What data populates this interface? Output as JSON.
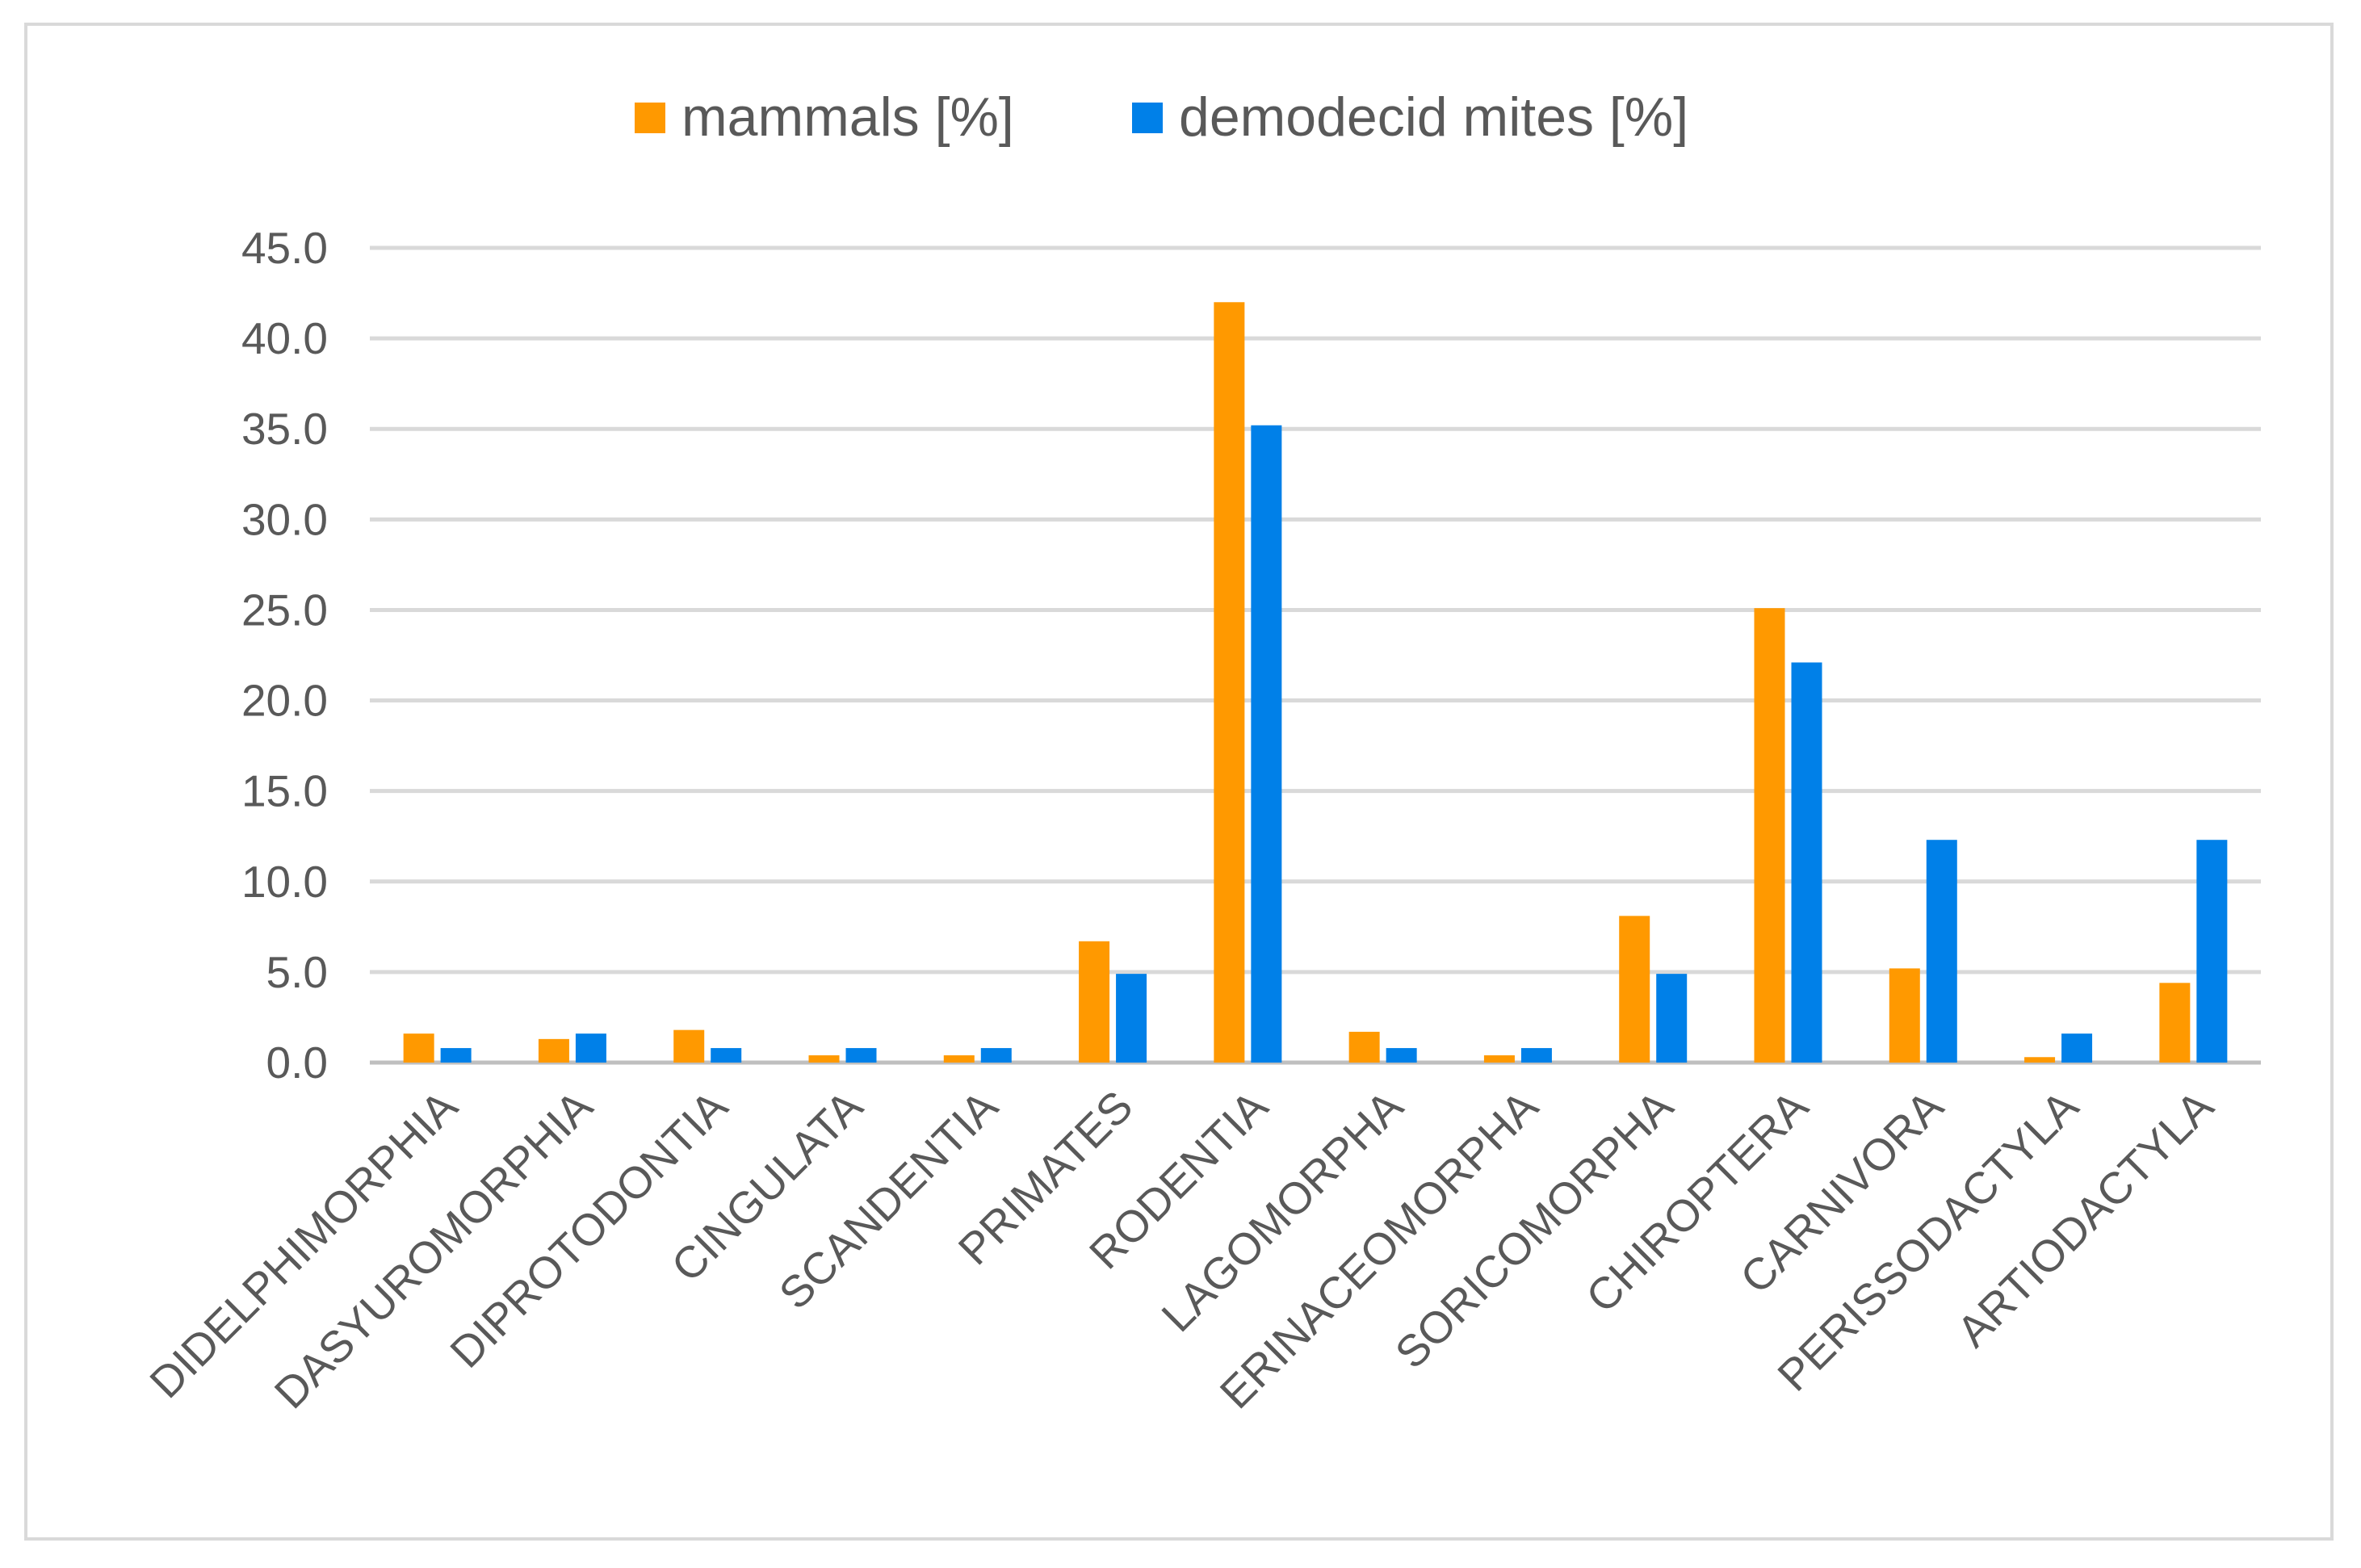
{
  "chart_data": {
    "type": "bar",
    "categories": [
      "DIDELPHIMORPHIA",
      "DASYUROMORPHIA",
      "DIPROTODONTIA",
      "CINGULATA",
      "SCANDENTIA",
      "PRIMATES",
      "RODENTIA",
      "LAGOMORPHA",
      "ERINACEOMORPHA",
      "SORICOMORPHA",
      "CHIROPTERA",
      "CARNIVORA",
      "PERISSODACTYLA",
      "ARTIODACTYLA"
    ],
    "series": [
      {
        "name": "mammals [%]",
        "color": "#ff9900",
        "values": [
          1.6,
          1.3,
          1.8,
          0.4,
          0.4,
          6.7,
          42.0,
          1.7,
          0.4,
          8.1,
          25.1,
          5.2,
          0.3,
          4.4
        ]
      },
      {
        "name": "demodecid mites [%]",
        "color": "#0080e8",
        "values": [
          0.8,
          1.6,
          0.8,
          0.8,
          0.8,
          4.9,
          35.2,
          0.8,
          0.8,
          4.9,
          22.1,
          12.3,
          1.6,
          12.3
        ]
      }
    ],
    "ylim": [
      0,
      45
    ],
    "yticks": [
      "0.0",
      "5.0",
      "10.0",
      "15.0",
      "20.0",
      "25.0",
      "30.0",
      "35.0",
      "40.0",
      "45.0"
    ],
    "grid": true,
    "legend_position": "top-center",
    "title": "",
    "xlabel": "",
    "ylabel": ""
  }
}
